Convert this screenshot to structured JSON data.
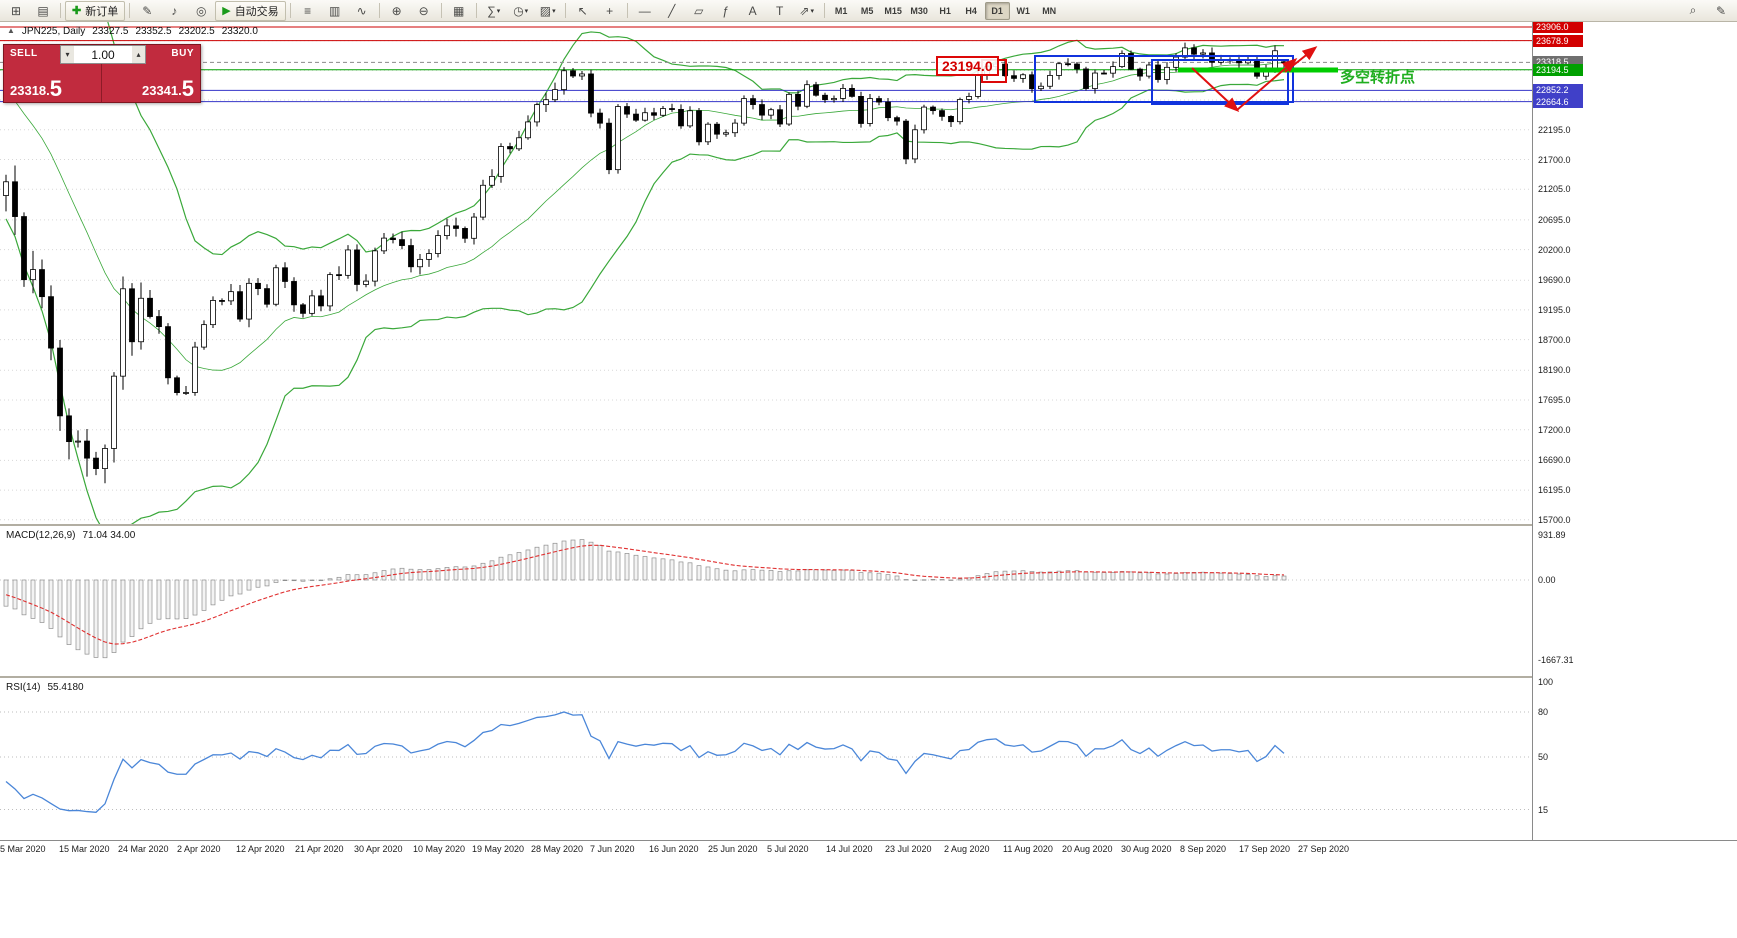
{
  "toolbar": {
    "left_icons": [
      {
        "name": "new-chart-icon",
        "glyph": "⊞"
      },
      {
        "name": "profiles-icon",
        "glyph": "▤"
      }
    ],
    "new_order_label": "新订单",
    "new_order_icon_glyph": "✚",
    "mid_icons": [
      {
        "name": "metaeditor-icon",
        "glyph": "✎"
      },
      {
        "name": "alerts-icon",
        "glyph": "♪"
      },
      {
        "name": "headset-icon",
        "glyph": "◎"
      }
    ],
    "autotrading_label": "自动交易",
    "autotrading_icon_glyph": "▶",
    "chart_icons": [
      {
        "name": "bar-chart-icon",
        "glyph": "≡"
      },
      {
        "name": "candlestick-chart-icon",
        "glyph": "▥"
      },
      {
        "name": "line-chart-icon",
        "glyph": "∿"
      }
    ],
    "zoom_icons": [
      {
        "name": "zoom-in-icon",
        "glyph": "⊕"
      },
      {
        "name": "zoom-out-icon",
        "glyph": "⊖"
      }
    ],
    "window_icons": [
      {
        "name": "tile-windows-icon",
        "glyph": "▦"
      }
    ],
    "tool_icons": [
      {
        "name": "indicators-icon",
        "glyph": "∑",
        "caret": true
      },
      {
        "name": "clock-icon",
        "glyph": "◷",
        "caret": true
      },
      {
        "name": "templates-icon",
        "glyph": "▨",
        "caret": true
      }
    ],
    "cursor_icons": [
      {
        "name": "cursor-icon",
        "glyph": "↖"
      },
      {
        "name": "crosshair-icon",
        "glyph": "+"
      }
    ],
    "draw_icons": [
      {
        "name": "horizontal-line-icon",
        "glyph": "—"
      },
      {
        "name": "trendline-icon",
        "glyph": "╱"
      },
      {
        "name": "equidistant-channel-icon",
        "glyph": "▱"
      },
      {
        "name": "fibonacci-icon",
        "glyph": "ƒ"
      },
      {
        "name": "text-icon",
        "glyph": "A"
      },
      {
        "name": "text-label-icon",
        "glyph": "T"
      },
      {
        "name": "arrows-icon",
        "glyph": "⇗",
        "caret": true
      }
    ],
    "timeframes": [
      "M1",
      "M5",
      "M15",
      "M30",
      "H1",
      "H4",
      "D1",
      "W1",
      "MN"
    ],
    "active_timeframe": "D1",
    "right_icons": [
      {
        "name": "search-icon",
        "glyph": "⌕"
      },
      {
        "name": "quick-draw-icon",
        "glyph": "✎"
      }
    ]
  },
  "symbol_header": {
    "name": "JPN225, Daily",
    "open": "23327.5",
    "high": "23352.5",
    "low": "23202.5",
    "close": "23320.0"
  },
  "one_click": {
    "sell_label": "SELL",
    "buy_label": "BUY",
    "sell_price_main": "23318.",
    "sell_price_big": "5",
    "buy_price_main": "23341.",
    "buy_price_big": "5",
    "lot": "1.00",
    "panel_color": "#c12b3e"
  },
  "price_axis": {
    "ticks": [
      "23680.0",
      "23185.0",
      "22690.0",
      "22195.0",
      "21700.0",
      "21205.0",
      "20695.0",
      "20200.0",
      "19690.0",
      "19195.0",
      "18700.0",
      "18190.0",
      "17695.0",
      "17200.0",
      "16690.0",
      "16195.0",
      "15700.0"
    ],
    "tags": [
      {
        "text": "23906.0",
        "price": 23906.0,
        "color": "#d20000"
      },
      {
        "text": "23678.9",
        "price": 23678.9,
        "color": "#d20000"
      },
      {
        "text": "23318.5",
        "price": 23318.5,
        "color": "#6f6f6f"
      },
      {
        "text": "23194.5",
        "price": 23194.5,
        "color": "#00a000"
      },
      {
        "text": "22852.2",
        "price": 22852.2,
        "color": "#4040c8"
      },
      {
        "text": "22664.6",
        "price": 22664.6,
        "color": "#4040c8"
      }
    ]
  },
  "levels": [
    {
      "price": 23906.0,
      "color": "#cc0000",
      "width": 1,
      "dash": ""
    },
    {
      "price": 23678.9,
      "color": "#cc0000",
      "width": 1,
      "dash": ""
    },
    {
      "price": 23318.5,
      "color": "#8a8a8a",
      "width": 1,
      "dash": "4 3"
    },
    {
      "price": 23194.5,
      "color": "#00a000",
      "width": 1,
      "dash": ""
    },
    {
      "price": 22852.2,
      "color": "#3434c8",
      "width": 1,
      "dash": ""
    },
    {
      "price": 22664.6,
      "color": "#3434c8",
      "width": 1,
      "dash": ""
    }
  ],
  "annotations": {
    "price_callout": "23194.0",
    "turning_point": "多空转折点",
    "arrow_color": "#e01010",
    "box_color": "#1133dd",
    "highlight_line_color": "#00cc00"
  },
  "macd": {
    "label": "MACD(12,26,9)",
    "values": "71.04 34.00",
    "scale": [
      "931.89",
      "0.00",
      "-1667.31"
    ]
  },
  "rsi": {
    "label": "RSI(14)",
    "value": "55.4180",
    "scale": [
      "100",
      "80",
      "50",
      "15"
    ],
    "level_lines": [
      80,
      50,
      15
    ]
  },
  "time_axis": {
    "dates": [
      "5 Mar 2020",
      "15 Mar 2020",
      "24 Mar 2020",
      "2 Apr 2020",
      "12 Apr 2020",
      "21 Apr 2020",
      "30 Apr 2020",
      "10 May 2020",
      "19 May 2020",
      "28 May 2020",
      "7 Jun 2020",
      "16 Jun 2020",
      "25 Jun 2020",
      "5 Jul 2020",
      "14 Jul 2020",
      "23 Jul 2020",
      "2 Aug 2020",
      "11 Aug 2020",
      "20 Aug 2020",
      "30 Aug 2020",
      "8 Sep 2020",
      "17 Sep 2020",
      "27 Sep 2020"
    ]
  },
  "chart_data": {
    "type": "candlestick",
    "symbol": "JPN225",
    "timeframe": "Daily",
    "price_range_visible": [
      15700.0,
      23906.0
    ],
    "indicators": {
      "bollinger_period": 20,
      "bollinger_dev": 2,
      "macd": [
        12,
        26,
        9
      ],
      "rsi_period": 14
    },
    "warmup_closes": [
      23085,
      23320,
      23874,
      23828,
      23686,
      23861,
      23828,
      23687,
      23523,
      23193,
      23401,
      23479,
      23387,
      22605,
      22426,
      21948,
      21143,
      21344,
      21082,
      21100
    ],
    "closes": [
      21329,
      20750,
      19699,
      19867,
      19416,
      18560,
      17431,
      17002,
      17011,
      16727,
      16553,
      16888,
      18092,
      19547,
      18665,
      19389,
      19085,
      18917,
      18065,
      17818,
      17820,
      18576,
      18950,
      19353,
      19346,
      19499,
      19043,
      19638,
      19550,
      19290,
      19897,
      19669,
      19280,
      19138,
      19429,
      19262,
      19783,
      19771,
      20194,
      19619,
      19675,
      20179,
      20391,
      20366,
      20267,
      19914,
      20037,
      20134,
      20433,
      20595,
      20552,
      20388,
      20741,
      21271,
      21419,
      21916,
      21878,
      22062,
      22326,
      22614,
      22696,
      22864,
      23178,
      23091,
      23125,
      22473,
      22305,
      21531,
      22582,
      22456,
      22355,
      22479,
      22437,
      22549,
      22534,
      22260,
      22512,
      21995,
      22288,
      22122,
      22146,
      22306,
      22714,
      22615,
      22439,
      22529,
      22291,
      22785,
      22587,
      22946,
      22770,
      22696,
      22717,
      22884,
      22751,
      22300,
      22715,
      22657,
      22397,
      22339,
      21710,
      22195,
      22573,
      22514,
      22418,
      22330,
      22700,
      22750,
      23110,
      23249,
      23289,
      23096,
      23051,
      23111,
      22880,
      22920,
      23100,
      23296,
      23290,
      23208,
      22882,
      23140,
      23138,
      23247,
      23466,
      23205,
      23089,
      23274,
      23032,
      23235,
      23406,
      23559,
      23454,
      23475,
      23319,
      23360,
      23360,
      23310,
      23346,
      23087,
      23204,
      23511,
      23320
    ],
    "last_candle": [
      23327.5,
      23352.5,
      23202.5,
      23320.0
    ]
  }
}
